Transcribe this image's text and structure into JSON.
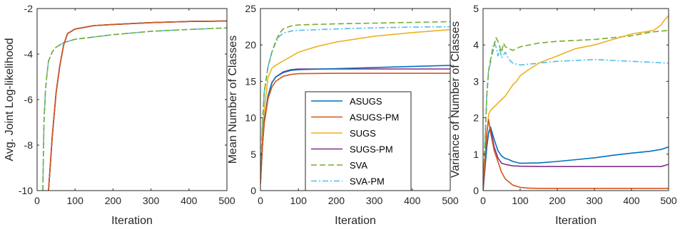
{
  "chart_data": [
    {
      "type": "line",
      "xlabel": "Iteration",
      "ylabel": "Avg. Joint Log-likelihood",
      "xlim": [
        0,
        500
      ],
      "ylim": [
        -10,
        -2
      ],
      "xticks": [
        "0",
        "100",
        "200",
        "300",
        "400",
        "500"
      ],
      "yticks": [
        "-10",
        "-8",
        "-6",
        "-4",
        "-2"
      ],
      "grid": false,
      "series": [
        {
          "name": "ASUGS",
          "x": [
            30,
            40,
            50,
            60,
            70,
            80,
            100,
            150,
            200,
            300,
            400,
            500
          ],
          "y": [
            -10,
            -7.6,
            -5.7,
            -4.5,
            -3.6,
            -3.1,
            -2.9,
            -2.75,
            -2.7,
            -2.62,
            -2.57,
            -2.55
          ]
        },
        {
          "name": "ASUGS-PM",
          "x": [
            30,
            40,
            50,
            60,
            70,
            80,
            100,
            150,
            200,
            300,
            400,
            500
          ],
          "y": [
            -10,
            -7.6,
            -5.7,
            -4.5,
            -3.6,
            -3.1,
            -2.9,
            -2.75,
            -2.7,
            -2.62,
            -2.57,
            -2.55
          ]
        },
        {
          "name": "SUGS",
          "x": [
            30,
            40,
            50,
            60,
            70,
            80,
            100,
            150,
            200,
            300,
            400,
            500
          ],
          "y": [
            -10,
            -7.6,
            -5.7,
            -4.5,
            -3.6,
            -3.1,
            -2.9,
            -2.75,
            -2.7,
            -2.62,
            -2.57,
            -2.55
          ]
        },
        {
          "name": "SUGS-PM",
          "x": [
            30,
            40,
            50,
            60,
            70,
            80,
            100,
            150,
            200,
            300,
            400,
            500
          ],
          "y": [
            -10,
            -7.6,
            -5.7,
            -4.5,
            -3.6,
            -3.1,
            -2.9,
            -2.75,
            -2.7,
            -2.62,
            -2.57,
            -2.55
          ]
        },
        {
          "name": "SVA",
          "x": [
            15,
            18,
            22,
            26,
            30,
            40,
            50,
            70,
            100,
            200,
            300,
            400,
            500
          ],
          "y": [
            -10,
            -7.0,
            -5.6,
            -4.9,
            -4.3,
            -3.9,
            -3.7,
            -3.5,
            -3.35,
            -3.15,
            -3.0,
            -2.92,
            -2.85
          ]
        },
        {
          "name": "SVA-PM",
          "x": [
            15,
            18,
            22,
            26,
            30,
            40,
            50,
            70,
            100,
            200,
            300,
            400,
            500
          ],
          "y": [
            -10,
            -7.0,
            -5.6,
            -4.9,
            -4.3,
            -3.9,
            -3.7,
            -3.5,
            -3.35,
            -3.15,
            -3.0,
            -2.92,
            -2.85
          ]
        }
      ]
    },
    {
      "type": "line",
      "xlabel": "Iteration",
      "ylabel": "Mean Number of Classes",
      "xlim": [
        0,
        500
      ],
      "ylim": [
        0,
        25
      ],
      "xticks": [
        "0",
        "100",
        "200",
        "300",
        "400",
        "500"
      ],
      "yticks": [
        "0",
        "5",
        "10",
        "15",
        "20",
        "25"
      ],
      "grid": false,
      "legend": {
        "position": "lower-center",
        "entries": [
          "ASUGS",
          "ASUGS-PM",
          "SUGS",
          "SUGS-PM",
          "SVA",
          "SVA-PM"
        ]
      },
      "series": [
        {
          "name": "ASUGS",
          "x": [
            0,
            5,
            10,
            20,
            30,
            40,
            60,
            80,
            100,
            200,
            300,
            400,
            500
          ],
          "y": [
            1,
            6,
            9.5,
            13,
            14.8,
            15.6,
            16.2,
            16.5,
            16.6,
            16.75,
            16.9,
            17.05,
            17.2
          ]
        },
        {
          "name": "ASUGS-PM",
          "x": [
            0,
            5,
            10,
            20,
            30,
            40,
            60,
            80,
            100,
            200,
            300,
            400,
            500
          ],
          "y": [
            1,
            6,
            9.2,
            12.6,
            14.2,
            15.0,
            15.7,
            15.95,
            16.05,
            16.1,
            16.1,
            16.1,
            16.1
          ]
        },
        {
          "name": "SUGS",
          "x": [
            0,
            5,
            10,
            20,
            30,
            40,
            60,
            80,
            100,
            150,
            200,
            300,
            400,
            500
          ],
          "y": [
            1,
            7,
            11,
            15.5,
            16.8,
            17.2,
            17.8,
            18.4,
            19.0,
            19.8,
            20.4,
            21.2,
            21.7,
            22.1
          ]
        },
        {
          "name": "SUGS-PM",
          "x": [
            0,
            5,
            10,
            20,
            30,
            40,
            60,
            80,
            100,
            200,
            300,
            400,
            500
          ],
          "y": [
            1,
            6,
            9.5,
            13,
            14.8,
            15.6,
            16.3,
            16.6,
            16.7,
            16.7,
            16.7,
            16.7,
            16.7
          ]
        },
        {
          "name": "SVA",
          "x": [
            0,
            5,
            10,
            20,
            30,
            40,
            50,
            60,
            80,
            100,
            200,
            300,
            400,
            500
          ],
          "y": [
            1,
            9,
            13.5,
            17,
            19,
            20.5,
            21.6,
            22.2,
            22.6,
            22.75,
            22.9,
            23.0,
            23.1,
            23.2
          ]
        },
        {
          "name": "SVA-PM",
          "x": [
            0,
            5,
            10,
            20,
            30,
            40,
            50,
            60,
            80,
            100,
            200,
            300,
            400,
            500
          ],
          "y": [
            1,
            9,
            13.5,
            17,
            19,
            20.3,
            21.2,
            21.6,
            21.9,
            22.0,
            22.2,
            22.35,
            22.45,
            22.5
          ]
        }
      ]
    },
    {
      "type": "line",
      "xlabel": "Iteration",
      "ylabel": "Variance of Number of Classes",
      "xlim": [
        0,
        500
      ],
      "ylim": [
        0,
        5
      ],
      "xticks": [
        "0",
        "100",
        "200",
        "300",
        "400",
        "500"
      ],
      "yticks": [
        "0",
        "1",
        "2",
        "3",
        "4",
        "5"
      ],
      "grid": false,
      "series": [
        {
          "name": "ASUGS",
          "x": [
            0,
            5,
            10,
            15,
            20,
            30,
            40,
            50,
            60,
            70,
            80,
            100,
            150,
            200,
            250,
            300,
            350,
            400,
            450,
            480,
            500
          ],
          "y": [
            0,
            0.6,
            1.2,
            1.6,
            1.75,
            1.4,
            1.1,
            0.95,
            0.88,
            0.85,
            0.8,
            0.75,
            0.76,
            0.8,
            0.85,
            0.9,
            0.97,
            1.03,
            1.08,
            1.13,
            1.2
          ]
        },
        {
          "name": "ASUGS-PM",
          "x": [
            0,
            5,
            10,
            15,
            20,
            30,
            40,
            50,
            60,
            80,
            100,
            120,
            150,
            200,
            300,
            400,
            500
          ],
          "y": [
            0,
            0.8,
            1.6,
            1.95,
            1.6,
            1.1,
            0.8,
            0.5,
            0.32,
            0.15,
            0.09,
            0.07,
            0.06,
            0.06,
            0.06,
            0.06,
            0.06
          ]
        },
        {
          "name": "SUGS",
          "x": [
            0,
            5,
            10,
            15,
            20,
            30,
            40,
            50,
            60,
            70,
            80,
            90,
            100,
            120,
            150,
            200,
            250,
            300,
            350,
            400,
            430,
            460,
            480,
            490,
            500
          ],
          "y": [
            0,
            0.8,
            1.5,
            2.1,
            2.2,
            2.3,
            2.4,
            2.5,
            2.6,
            2.75,
            2.9,
            3.0,
            3.15,
            3.3,
            3.5,
            3.7,
            3.9,
            4.0,
            4.15,
            4.3,
            4.35,
            4.4,
            4.55,
            4.7,
            4.8
          ]
        },
        {
          "name": "SUGS-PM",
          "x": [
            0,
            5,
            10,
            15,
            20,
            30,
            40,
            50,
            60,
            70,
            80,
            100,
            150,
            200,
            300,
            400,
            480,
            500
          ],
          "y": [
            0,
            0.6,
            1.2,
            1.6,
            1.7,
            1.2,
            0.9,
            0.75,
            0.72,
            0.7,
            0.68,
            0.67,
            0.66,
            0.66,
            0.66,
            0.66,
            0.66,
            0.72
          ]
        },
        {
          "name": "SVA",
          "x": [
            0,
            5,
            10,
            15,
            20,
            25,
            30,
            35,
            40,
            45,
            50,
            55,
            60,
            70,
            80,
            100,
            150,
            200,
            300,
            400,
            450,
            500
          ],
          "y": [
            0,
            1.3,
            2.6,
            3.3,
            3.6,
            3.75,
            4.0,
            4.2,
            4.1,
            3.95,
            3.8,
            4.05,
            3.95,
            3.9,
            3.85,
            3.95,
            4.05,
            4.1,
            4.15,
            4.25,
            4.35,
            4.4
          ]
        },
        {
          "name": "SVA-PM",
          "x": [
            0,
            5,
            10,
            15,
            20,
            25,
            30,
            35,
            40,
            45,
            50,
            60,
            70,
            80,
            100,
            150,
            200,
            300,
            400,
            500
          ],
          "y": [
            0,
            1.3,
            2.6,
            3.3,
            3.5,
            3.9,
            4.05,
            3.95,
            3.7,
            3.9,
            3.65,
            3.8,
            3.6,
            3.5,
            3.45,
            3.5,
            3.55,
            3.6,
            3.55,
            3.5
          ]
        }
      ]
    }
  ],
  "colors": {
    "ASUGS": "#0072BD",
    "ASUGS-PM": "#D95319",
    "SUGS": "#EDB120",
    "SUGS-PM": "#7E2F8E",
    "SVA": "#77AC30",
    "SVA-PM": "#4DBEEE"
  },
  "dashes": {
    "ASUGS": "",
    "ASUGS-PM": "",
    "SUGS": "",
    "SUGS-PM": "",
    "SVA": "8,4",
    "SVA-PM": "8,3,2,3"
  }
}
